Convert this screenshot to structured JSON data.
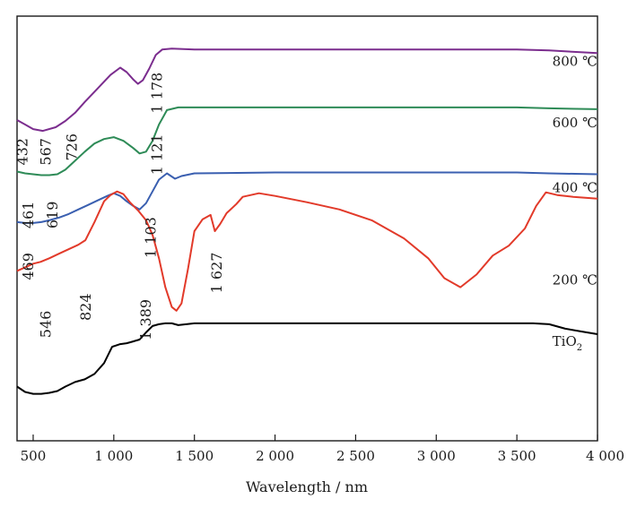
{
  "chart_data": {
    "type": "line",
    "xlabel": "Wavelength / nm",
    "ylabel": "",
    "xlim": [
      400,
      4000
    ],
    "xticks": [
      500,
      1000,
      1500,
      2000,
      2500,
      3000,
      3500,
      4000
    ],
    "xtick_labels": [
      "500",
      "1 000",
      "1 500",
      "2 000",
      "2 500",
      "3 000",
      "3 500",
      "4 000"
    ],
    "yticks": false,
    "grid": false,
    "legend": "inline labels at right",
    "series": [
      {
        "name": "800 ℃",
        "color": "#7b2d8e",
        "x": [
          400,
          450,
          500,
          560,
          640,
          700,
          760,
          820,
          900,
          980,
          1040,
          1080,
          1120,
          1150,
          1180,
          1220,
          1260,
          1300,
          1360,
          1500,
          2000,
          2500,
          3000,
          3500,
          3700,
          4000
        ],
        "y": [
          15.5,
          15.0,
          14.5,
          14.3,
          14.7,
          15.4,
          16.3,
          17.5,
          19.0,
          20.5,
          21.3,
          20.8,
          20.0,
          19.5,
          19.9,
          21.2,
          22.7,
          23.3,
          23.4,
          23.3,
          23.3,
          23.3,
          23.3,
          23.3,
          23.2,
          22.9
        ]
      },
      {
        "name": "600 ℃",
        "color": "#2e8b57",
        "x": [
          400,
          450,
          500,
          550,
          600,
          650,
          700,
          760,
          820,
          880,
          940,
          1000,
          1060,
          1120,
          1160,
          1200,
          1240,
          1280,
          1330,
          1400,
          1600,
          2000,
          2500,
          3000,
          3500,
          3700,
          4000
        ],
        "y": [
          9.8,
          9.6,
          9.5,
          9.4,
          9.4,
          9.5,
          10.0,
          11.0,
          12.0,
          12.9,
          13.4,
          13.6,
          13.2,
          12.4,
          11.8,
          12.0,
          13.2,
          15.0,
          16.6,
          16.9,
          16.9,
          16.9,
          16.9,
          16.9,
          16.9,
          16.8,
          16.7
        ]
      },
      {
        "name": "400 ℃",
        "color": "#3a5fb0",
        "x": [
          400,
          450,
          500,
          550,
          600,
          660,
          720,
          780,
          840,
          900,
          960,
          1000,
          1040,
          1080,
          1120,
          1160,
          1200,
          1240,
          1280,
          1330,
          1380,
          1420,
          1500,
          2000,
          2500,
          3000,
          3500,
          3700,
          4000
        ],
        "y": [
          4.2,
          4.1,
          4.1,
          4.2,
          4.4,
          4.7,
          5.1,
          5.6,
          6.1,
          6.6,
          7.1,
          7.4,
          7.1,
          6.5,
          6.0,
          5.6,
          6.3,
          7.6,
          8.9,
          9.6,
          9.0,
          9.3,
          9.6,
          9.7,
          9.7,
          9.7,
          9.7,
          9.6,
          9.5
        ]
      },
      {
        "name": "200 ℃",
        "color": "#e23a2a",
        "x": [
          400,
          450,
          500,
          546,
          600,
          660,
          720,
          780,
          824,
          880,
          940,
          980,
          1020,
          1060,
          1100,
          1150,
          1200,
          1240,
          1280,
          1320,
          1360,
          1389,
          1420,
          1460,
          1500,
          1550,
          1600,
          1627,
          1660,
          1700,
          1760,
          1800,
          1900,
          2000,
          2200,
          2400,
          2600,
          2800,
          2950,
          3050,
          3150,
          3250,
          3350,
          3450,
          3550,
          3620,
          3680,
          3750,
          3850,
          4000
        ],
        "y": [
          -1.2,
          -0.8,
          -0.4,
          -0.2,
          0.2,
          0.7,
          1.2,
          1.7,
          2.2,
          4.2,
          6.5,
          7.2,
          7.6,
          7.3,
          6.4,
          5.5,
          4.4,
          2.8,
          0.2,
          -3.0,
          -5.2,
          -5.6,
          -4.8,
          -1.0,
          3.2,
          4.5,
          5.0,
          3.2,
          4.0,
          5.2,
          6.2,
          7.0,
          7.4,
          7.1,
          6.4,
          5.6,
          4.4,
          2.4,
          0.2,
          -2.0,
          -3.0,
          -1.6,
          0.5,
          1.6,
          3.5,
          6.0,
          7.5,
          7.2,
          7.0,
          6.8
        ]
      },
      {
        "name": "TiO2",
        "color": "#000000",
        "x": [
          400,
          450,
          500,
          550,
          600,
          650,
          700,
          760,
          820,
          880,
          940,
          990,
          1040,
          1080,
          1120,
          1160,
          1200,
          1240,
          1280,
          1320,
          1360,
          1400,
          1500,
          2000,
          2500,
          3000,
          3500,
          3600,
          3700,
          3800,
          3900,
          4000
        ],
        "y": [
          -14.0,
          -14.6,
          -14.8,
          -14.8,
          -14.7,
          -14.5,
          -14.0,
          -13.5,
          -13.2,
          -12.6,
          -11.4,
          -9.6,
          -9.3,
          -9.2,
          -9.0,
          -8.8,
          -8.0,
          -7.3,
          -7.1,
          -7.0,
          -7.0,
          -7.2,
          -7.0,
          -7.0,
          -7.0,
          -7.0,
          -7.0,
          -7.0,
          -7.1,
          -7.6,
          -7.9,
          -8.2
        ]
      }
    ],
    "series_labels": [
      {
        "text": "800 ℃",
        "x": 3720,
        "y": 21.5
      },
      {
        "text": "600 ℃",
        "x": 3720,
        "y": 14.7
      },
      {
        "text": "400 ℃",
        "x": 3720,
        "y": 7.5
      },
      {
        "text": "200 ℃",
        "x": 3720,
        "y": -2.7
      },
      {
        "text_main": "TiO",
        "text_sub": "2",
        "x": 3720,
        "y": -9.5
      }
    ],
    "annotations": [
      {
        "text": "432",
        "x": 465,
        "y": 12.0
      },
      {
        "text": "567",
        "x": 610,
        "y": 12.0
      },
      {
        "text": "726",
        "x": 770,
        "y": 12.5
      },
      {
        "text": "1 178",
        "x": 1300,
        "y": 18.5
      },
      {
        "text": "461",
        "x": 500,
        "y": 5.0
      },
      {
        "text": "619",
        "x": 650,
        "y": 5.0
      },
      {
        "text": "1 121",
        "x": 1300,
        "y": 11.7
      },
      {
        "text": "469",
        "x": 500,
        "y": -0.7
      },
      {
        "text": "1 103",
        "x": 1260,
        "y": 2.5
      },
      {
        "text": "546",
        "x": 610,
        "y": -7.1
      },
      {
        "text": "824",
        "x": 855,
        "y": -5.2
      },
      {
        "text": "1 389",
        "x": 1230,
        "y": -6.6
      },
      {
        "text": "1 627",
        "x": 1670,
        "y": -1.4
      }
    ]
  }
}
